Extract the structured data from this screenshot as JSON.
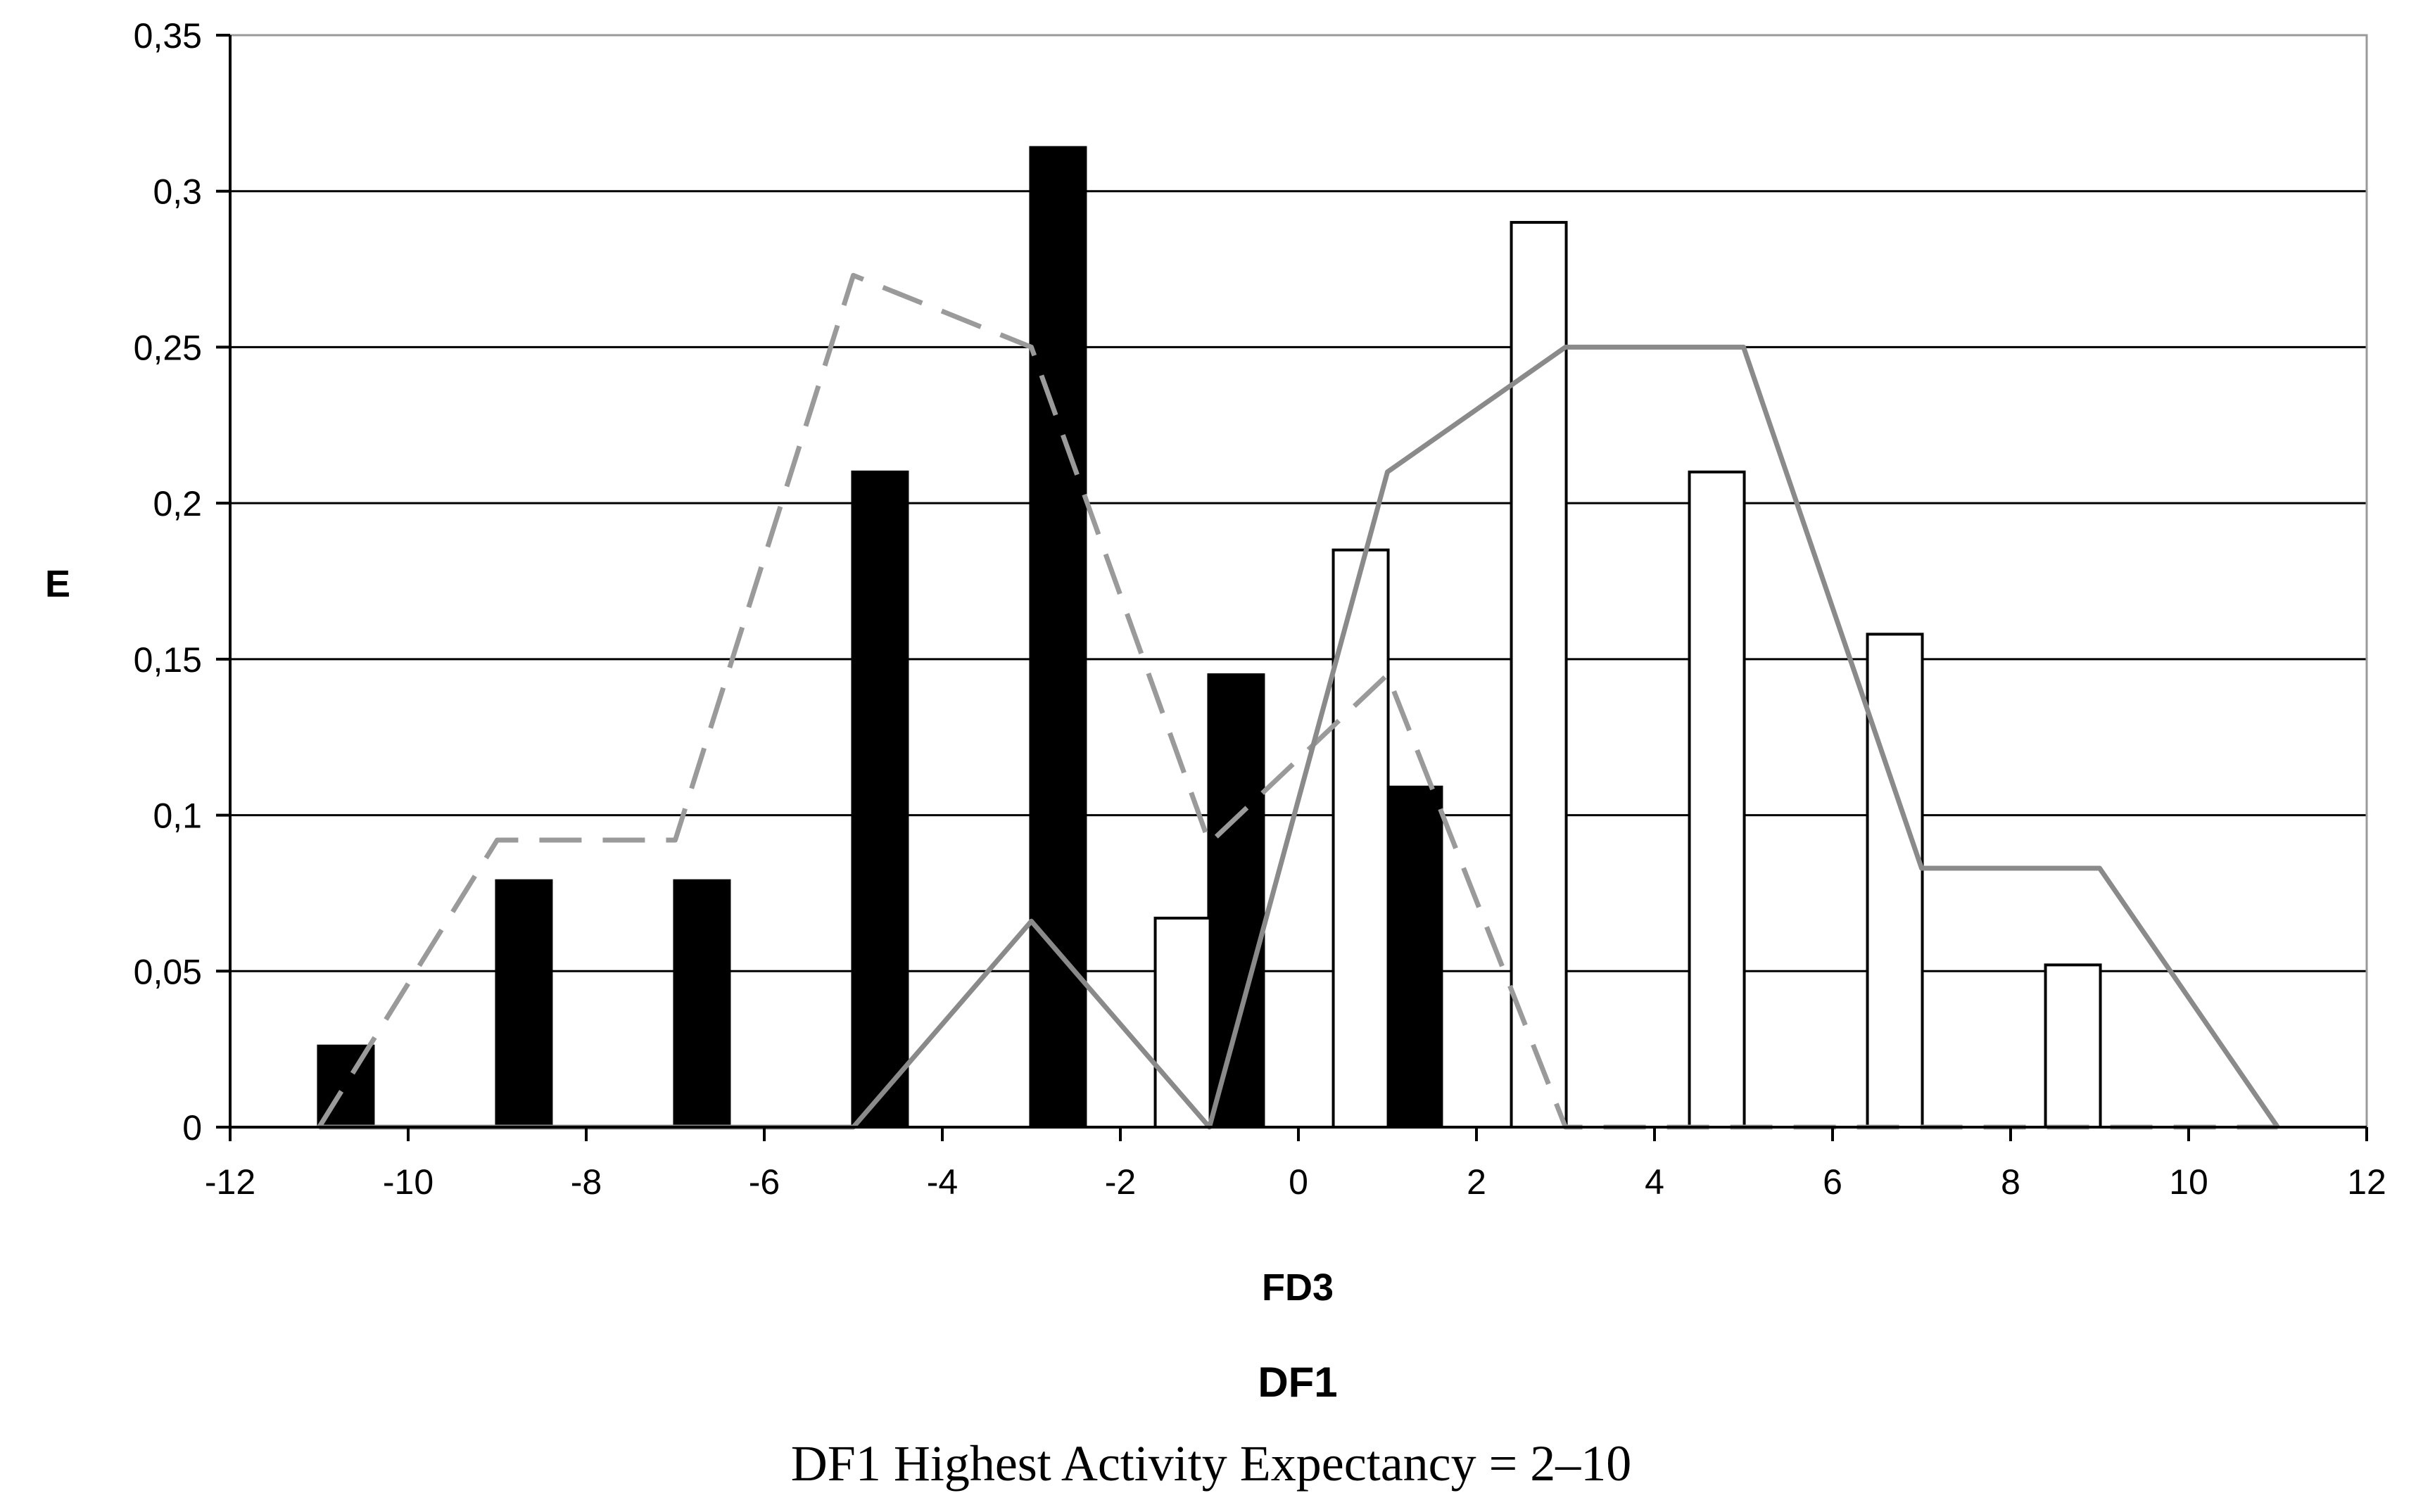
{
  "chart_data": {
    "type": "bar",
    "title": "DF1",
    "caption": "DF1 Highest Activity Expectancy = 2–10",
    "xlabel": "FD3",
    "ylabel": "E",
    "xlim": [
      -12,
      12
    ],
    "ylim": [
      0,
      0.35
    ],
    "x_ticks": [
      -12,
      -10,
      -8,
      -6,
      -4,
      -2,
      0,
      2,
      4,
      6,
      8,
      10,
      12
    ],
    "y_ticks": [
      0,
      0.05,
      0.1,
      0.15,
      0.2,
      0.25,
      0.3,
      0.35
    ],
    "y_tick_labels": [
      "0",
      "0,05",
      "0,1",
      "0,15",
      "0,2",
      "0,25",
      "0,3",
      "0,35"
    ],
    "grid": "horizontal",
    "bar_series": [
      {
        "name": "black bars",
        "fill": "#000000",
        "x": [
          -10.7,
          -8.7,
          -6.7,
          -4.7,
          -2.7,
          -0.7,
          1.3
        ],
        "values": [
          0.026,
          0.079,
          0.079,
          0.21,
          0.314,
          0.145,
          0.109
        ]
      },
      {
        "name": "white bars",
        "fill": "#ffffff",
        "x": [
          -1.3,
          0.7,
          2.7,
          4.7,
          6.7,
          8.7
        ],
        "values": [
          0.067,
          0.185,
          0.29,
          0.21,
          0.158,
          0.052
        ]
      }
    ],
    "line_series": [
      {
        "name": "dashed line",
        "style": "dashed",
        "color": "#9a9a9a",
        "x": [
          -11,
          -9,
          -7,
          -5,
          -3,
          -1,
          1,
          3,
          5,
          7,
          9,
          11
        ],
        "values": [
          0,
          0.092,
          0.092,
          0.273,
          0.25,
          0.091,
          0.145,
          0,
          0,
          0,
          0,
          0
        ]
      },
      {
        "name": "solid line",
        "style": "solid",
        "color": "#8a8a8a",
        "x": [
          -11,
          -9,
          -7,
          -5,
          -3,
          -1,
          1,
          3,
          5,
          7,
          9,
          11
        ],
        "values": [
          0,
          0,
          0,
          0,
          0.066,
          0,
          0.21,
          0.25,
          0.25,
          0.083,
          0.083,
          0
        ]
      }
    ]
  }
}
